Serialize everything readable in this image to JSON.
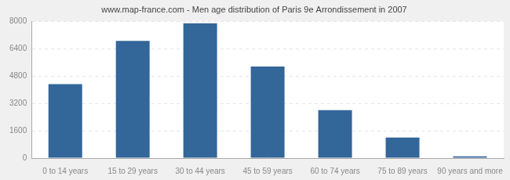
{
  "chart_data": {
    "type": "bar",
    "title": "www.map-france.com - Men age distribution of Paris 9e Arrondissement in 2007",
    "categories": [
      "0 to 14 years",
      "15 to 29 years",
      "30 to 44 years",
      "45 to 59 years",
      "60 to 74 years",
      "75 to 89 years",
      "90 years and more"
    ],
    "values": [
      4330,
      6850,
      7880,
      5350,
      2800,
      1200,
      100
    ],
    "color": "#336699",
    "ylim": [
      0,
      8000
    ],
    "yticks": [
      0,
      1600,
      3200,
      4800,
      6400,
      8000
    ],
    "grid": true
  }
}
